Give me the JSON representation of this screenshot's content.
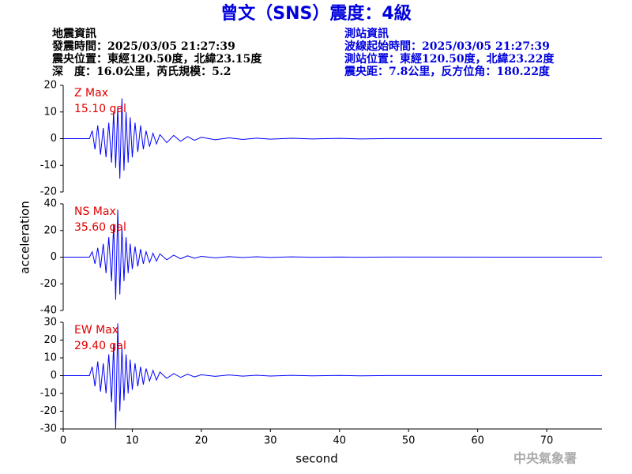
{
  "title": "曾文（SNS）震度：4級",
  "header": {
    "left": [
      "地震資訊",
      "發震時間：2025/03/05 21:27:39",
      "震央位置：東經120.50度，北緯23.15度",
      "深　度：16.0公里，芮氏規模：5.2"
    ],
    "right": [
      "測站資訊",
      "波線起始時間：2025/03/05 21:27:39",
      "測站位置：東經120.50度，北緯23.22度",
      "震央距：7.8公里，反方位角：180.22度"
    ]
  },
  "watermark": "中央氣象署",
  "chart_data": [
    {
      "type": "line",
      "annotation": [
        "Z Max",
        "15.10 gal"
      ],
      "annotation_color": "#e00000",
      "x": [
        0,
        3.8,
        4.2,
        4.6,
        5.0,
        5.4,
        5.8,
        6.2,
        6.6,
        7.0,
        7.3,
        7.6,
        7.9,
        8.2,
        8.5,
        8.8,
        9.1,
        9.4,
        9.7,
        10.0,
        10.4,
        10.8,
        11.2,
        11.6,
        12.0,
        12.5,
        13.0,
        13.5,
        14.0,
        15.0,
        16.0,
        17.0,
        18.0,
        19.0,
        20.0,
        22.0,
        24.0,
        26.0,
        28.0,
        30.0,
        33.0,
        36.0,
        40.0,
        43.0,
        47.0,
        78
      ],
      "series": [
        {
          "color": "#0000ff",
          "values": [
            0,
            0,
            3,
            -4,
            5,
            -6,
            4,
            -7,
            6,
            -9,
            10,
            -11,
            12,
            -15,
            15.1,
            -12,
            10,
            -9,
            8,
            -7,
            6,
            -5,
            5,
            -4,
            3,
            -3,
            2,
            -2,
            1.5,
            -1.5,
            1.2,
            -1,
            0.8,
            -0.6,
            0.5,
            -0.4,
            0.3,
            -0.3,
            0.2,
            -0.2,
            0.15,
            -0.1,
            0.1,
            -0.1,
            0.05,
            0
          ]
        }
      ],
      "xlim": [
        0,
        78
      ],
      "ylim": [
        -20,
        20
      ],
      "yticks": [
        -20,
        -10,
        0,
        10,
        20
      ]
    },
    {
      "type": "line",
      "annotation": [
        "NS Max",
        "35.60 gal"
      ],
      "annotation_color": "#e00000",
      "ylabel": "acceleration",
      "x": [
        0,
        3.8,
        4.2,
        4.6,
        5.0,
        5.4,
        5.8,
        6.2,
        6.6,
        7.0,
        7.3,
        7.6,
        7.9,
        8.2,
        8.5,
        8.8,
        9.1,
        9.4,
        9.7,
        10.0,
        10.4,
        10.8,
        11.2,
        11.6,
        12.0,
        12.5,
        13.0,
        13.5,
        14.0,
        15.0,
        16.0,
        17.0,
        18.0,
        19.0,
        20.0,
        22.0,
        24.0,
        26.0,
        28.0,
        30.0,
        33.0,
        36.0,
        40.0,
        43.0,
        47.0,
        78
      ],
      "series": [
        {
          "color": "#0000ff",
          "values": [
            0,
            0,
            4,
            -5,
            7,
            -8,
            10,
            -12,
            15,
            -18,
            25,
            -32,
            35.6,
            -28,
            22,
            -18,
            15,
            -12,
            10,
            -9,
            8,
            -7,
            6,
            -5,
            4,
            -4,
            3,
            -3,
            2.5,
            -2,
            1.5,
            -1.2,
            1,
            -0.8,
            0.6,
            -0.5,
            0.4,
            -0.3,
            0.3,
            -0.2,
            0.2,
            -0.1,
            0.1,
            -0.1,
            0.05,
            0
          ]
        }
      ],
      "xlim": [
        0,
        78
      ],
      "ylim": [
        -40,
        40
      ],
      "yticks": [
        -40,
        -20,
        0,
        20,
        40
      ]
    },
    {
      "type": "line",
      "annotation": [
        "EW Max",
        "29.40 gal"
      ],
      "annotation_color": "#e00000",
      "xlabel": "second",
      "x": [
        0,
        3.8,
        4.2,
        4.6,
        5.0,
        5.4,
        5.8,
        6.2,
        6.6,
        7.0,
        7.3,
        7.6,
        7.9,
        8.2,
        8.5,
        8.8,
        9.1,
        9.4,
        9.7,
        10.0,
        10.4,
        10.8,
        11.2,
        11.6,
        12.0,
        12.5,
        13.0,
        13.5,
        14.0,
        15.0,
        16.0,
        17.0,
        18.0,
        19.0,
        20.0,
        22.0,
        24.0,
        26.0,
        28.0,
        30.0,
        33.0,
        36.0,
        40.0,
        43.0,
        47.0,
        78
      ],
      "series": [
        {
          "color": "#0000ff",
          "values": [
            0,
            0,
            5,
            -6,
            8,
            -9,
            7,
            -10,
            12,
            -15,
            18,
            -30,
            29.4,
            -20,
            16,
            -14,
            12,
            -10,
            9,
            -8,
            7,
            -6,
            5,
            -5,
            4,
            -3,
            3,
            -2.5,
            2,
            -1.5,
            1.2,
            -1,
            0.8,
            -0.7,
            0.5,
            -0.4,
            0.4,
            -0.3,
            0.2,
            -0.2,
            0.15,
            -0.1,
            0.1,
            -0.1,
            0.05,
            0
          ]
        }
      ],
      "xlim": [
        0,
        78
      ],
      "ylim": [
        -30,
        30
      ],
      "yticks": [
        -30,
        -20,
        -10,
        0,
        10,
        20,
        30
      ],
      "xticks": [
        0,
        10,
        20,
        30,
        40,
        50,
        60,
        70
      ]
    }
  ]
}
